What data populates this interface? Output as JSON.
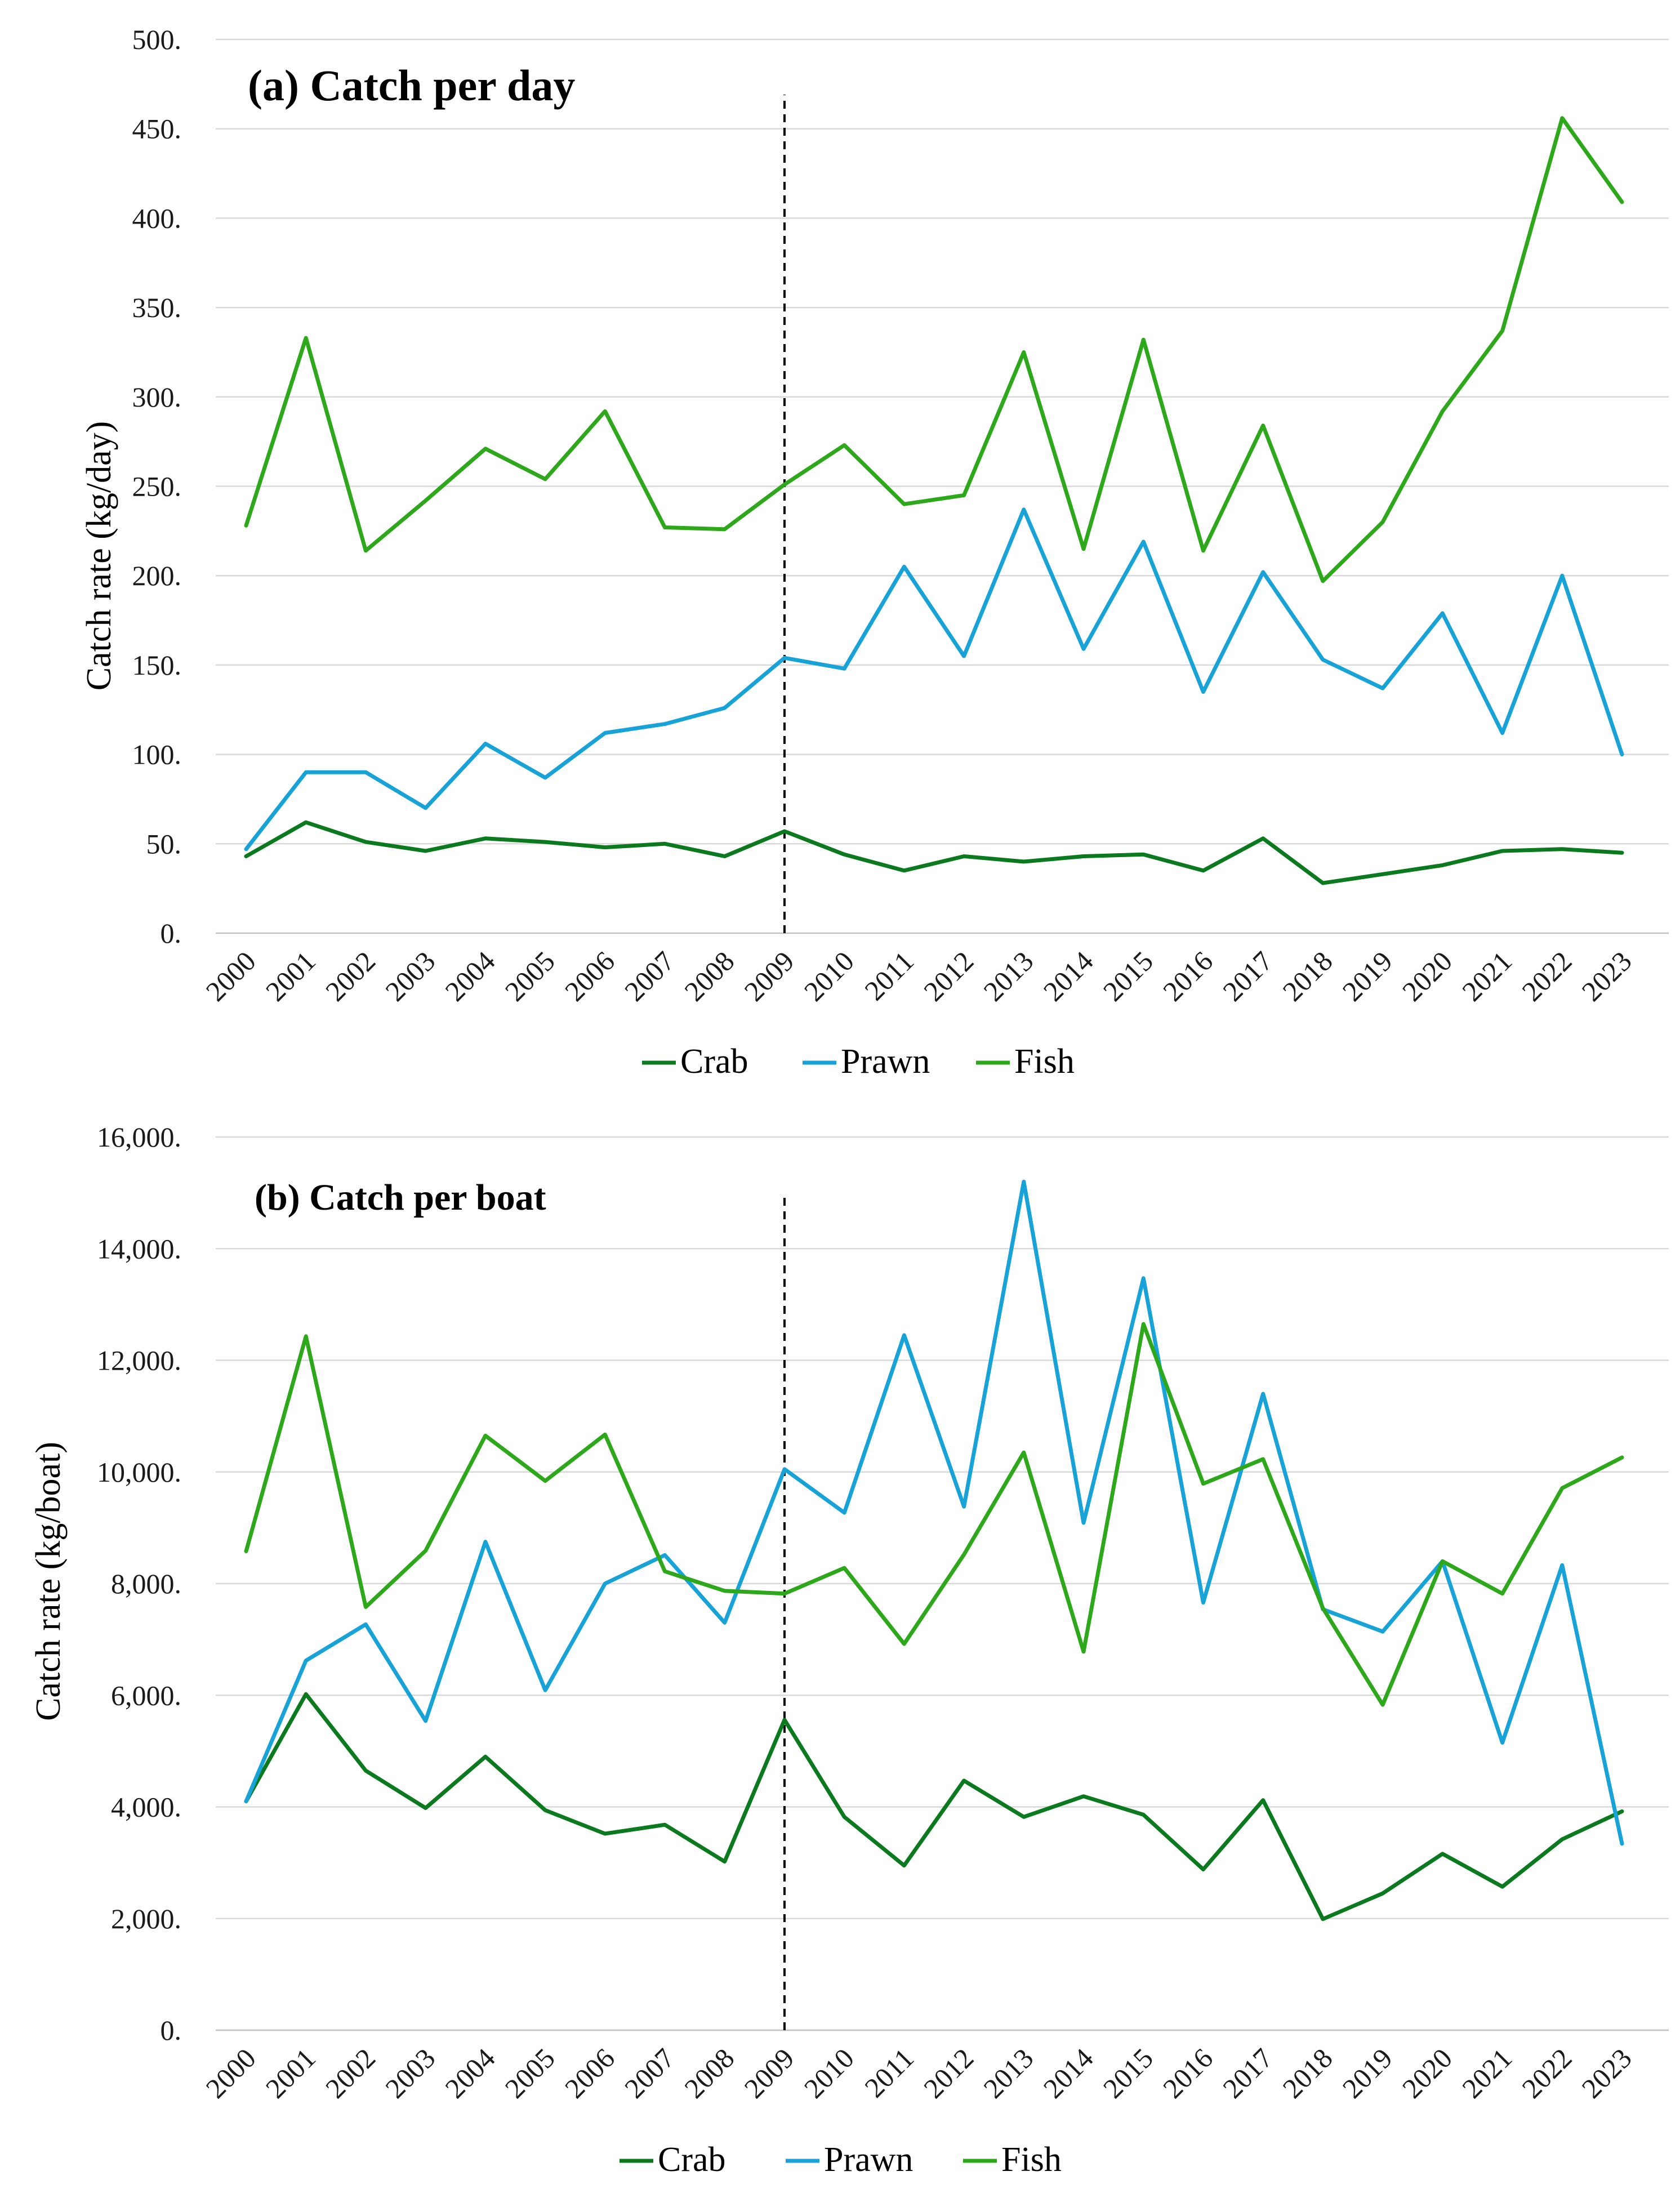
{
  "colors": {
    "Crab": "#0b7a1f",
    "Prawn": "#17a2d8",
    "Fish": "#2ea81b"
  },
  "chart_data": [
    {
      "type": "line",
      "title": "(a) Catch per day",
      "xlabel": "",
      "ylabel": "Catch rate (kg/day)",
      "ylim": [
        0,
        500
      ],
      "yticks": [
        0,
        50,
        100,
        150,
        200,
        250,
        300,
        350,
        400,
        450,
        500
      ],
      "ytick_labels": [
        "0.",
        "50.",
        "100.",
        "150.",
        "200.",
        "250.",
        "300.",
        "350.",
        "400.",
        "450.",
        "500."
      ],
      "categories": [
        "2000",
        "2001",
        "2002",
        "2003",
        "2004",
        "2005",
        "2006",
        "2007",
        "2008",
        "2009",
        "2010",
        "2011",
        "2012",
        "2013",
        "2014",
        "2015",
        "2016",
        "2017",
        "2018",
        "2019",
        "2020",
        "2021",
        "2022",
        "2023"
      ],
      "reference_line_at": "2009",
      "legend": "bottom",
      "series": [
        {
          "name": "Crab",
          "values": [
            43,
            62,
            51,
            46,
            53,
            51,
            48,
            50,
            43,
            57,
            44,
            35,
            43,
            40,
            43,
            44,
            35,
            53,
            28,
            33,
            38,
            46,
            47,
            45
          ]
        },
        {
          "name": "Prawn",
          "values": [
            47,
            90,
            90,
            70,
            106,
            87,
            112,
            117,
            126,
            154,
            148,
            205,
            155,
            237,
            159,
            219,
            135,
            202,
            153,
            137,
            179,
            112,
            200,
            100
          ]
        },
        {
          "name": "Fish",
          "values": [
            228,
            333,
            214,
            242,
            271,
            254,
            292,
            227,
            226,
            251,
            273,
            240,
            245,
            325,
            215,
            332,
            214,
            284,
            197,
            230,
            292,
            337,
            456,
            409
          ]
        }
      ]
    },
    {
      "type": "line",
      "title": "(b) Catch per boat",
      "xlabel": "",
      "ylabel": "Catch rate (kg/boat)",
      "ylim": [
        0,
        16000
      ],
      "yticks": [
        0,
        2000,
        4000,
        6000,
        8000,
        10000,
        12000,
        14000,
        16000
      ],
      "ytick_labels": [
        "0.",
        "2,000.",
        "4,000.",
        "6,000.",
        "8,000.",
        "10,000.",
        "12,000.",
        "14,000.",
        "16,000."
      ],
      "categories": [
        "2000",
        "2001",
        "2002",
        "2003",
        "2004",
        "2005",
        "2006",
        "2007",
        "2008",
        "2009",
        "2010",
        "2011",
        "2012",
        "2013",
        "2014",
        "2015",
        "2016",
        "2017",
        "2018",
        "2019",
        "2020",
        "2021",
        "2022",
        "2023"
      ],
      "reference_line_at": "2009",
      "legend": "bottom",
      "series": [
        {
          "name": "Crab",
          "values": [
            4100,
            6020,
            4650,
            3980,
            4900,
            3940,
            3520,
            3680,
            3020,
            5560,
            3820,
            2950,
            4470,
            3820,
            4190,
            3860,
            2880,
            4120,
            1990,
            2450,
            3160,
            2570,
            3420,
            3920
          ]
        },
        {
          "name": "Prawn",
          "values": [
            4100,
            6620,
            7270,
            5540,
            8750,
            6090,
            8000,
            8510,
            7300,
            10050,
            9270,
            12450,
            9380,
            15200,
            9090,
            13470,
            7660,
            11400,
            7540,
            7140,
            8400,
            5150,
            8330,
            3340
          ]
        },
        {
          "name": "Fish",
          "values": [
            8580,
            12430,
            7580,
            8590,
            10650,
            9840,
            10670,
            8220,
            7870,
            7820,
            8280,
            6920,
            8520,
            10350,
            6780,
            12650,
            9790,
            10230,
            7560,
            5830,
            8400,
            7820,
            9710,
            10260
          ]
        }
      ]
    }
  ]
}
